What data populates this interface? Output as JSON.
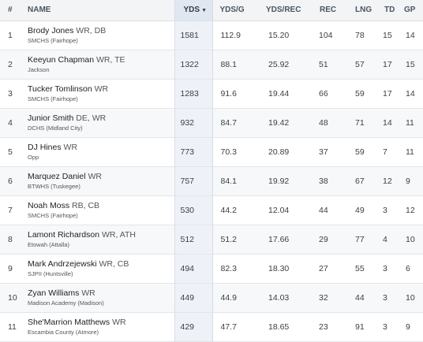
{
  "headers": {
    "rank": "#",
    "name": "NAME",
    "yds": "YDS",
    "sort_icon": "▼",
    "yds_g": "YDS/G",
    "yds_rec": "YDS/REC",
    "rec": "REC",
    "lng": "LNG",
    "td": "TD",
    "gp": "GP"
  },
  "rows": [
    {
      "rank": "1",
      "name": "Brody Jones",
      "pos": "WR, DB",
      "school": "SMCHS (Fairhope)",
      "yds": "1581",
      "yds_g": "112.9",
      "yds_rec": "15.20",
      "rec": "104",
      "lng": "78",
      "td": "15",
      "gp": "14"
    },
    {
      "rank": "2",
      "name": "Keeyun Chapman",
      "pos": "WR, TE",
      "school": "Jackson",
      "yds": "1322",
      "yds_g": "88.1",
      "yds_rec": "25.92",
      "rec": "51",
      "lng": "57",
      "td": "17",
      "gp": "15"
    },
    {
      "rank": "3",
      "name": "Tucker Tomlinson",
      "pos": "WR",
      "school": "SMCHS (Fairhope)",
      "yds": "1283",
      "yds_g": "91.6",
      "yds_rec": "19.44",
      "rec": "66",
      "lng": "59",
      "td": "17",
      "gp": "14"
    },
    {
      "rank": "4",
      "name": "Junior Smith",
      "pos": "DE, WR",
      "school": "DCHS (Midland City)",
      "yds": "932",
      "yds_g": "84.7",
      "yds_rec": "19.42",
      "rec": "48",
      "lng": "71",
      "td": "14",
      "gp": "11"
    },
    {
      "rank": "5",
      "name": "DJ Hines",
      "pos": "WR",
      "school": "Opp",
      "yds": "773",
      "yds_g": "70.3",
      "yds_rec": "20.89",
      "rec": "37",
      "lng": "59",
      "td": "7",
      "gp": "11"
    },
    {
      "rank": "6",
      "name": "Marquez Daniel",
      "pos": "WR",
      "school": "BTWHS (Tuskegee)",
      "yds": "757",
      "yds_g": "84.1",
      "yds_rec": "19.92",
      "rec": "38",
      "lng": "67",
      "td": "12",
      "gp": "9"
    },
    {
      "rank": "7",
      "name": "Noah Moss",
      "pos": "RB, CB",
      "school": "SMCHS (Fairhope)",
      "yds": "530",
      "yds_g": "44.2",
      "yds_rec": "12.04",
      "rec": "44",
      "lng": "49",
      "td": "3",
      "gp": "12"
    },
    {
      "rank": "8",
      "name": "Lamont Richardson",
      "pos": "WR, ATH",
      "school": "Etowah (Attalla)",
      "yds": "512",
      "yds_g": "51.2",
      "yds_rec": "17.66",
      "rec": "29",
      "lng": "77",
      "td": "4",
      "gp": "10"
    },
    {
      "rank": "9",
      "name": "Mark Andrzejewski",
      "pos": "WR, CB",
      "school": "SJPII (Huntsville)",
      "yds": "494",
      "yds_g": "82.3",
      "yds_rec": "18.30",
      "rec": "27",
      "lng": "55",
      "td": "3",
      "gp": "6"
    },
    {
      "rank": "10",
      "name": "Zyan Williams",
      "pos": "WR",
      "school": "Madison Academy (Madison)",
      "yds": "449",
      "yds_g": "44.9",
      "yds_rec": "14.03",
      "rec": "32",
      "lng": "44",
      "td": "3",
      "gp": "10"
    },
    {
      "rank": "11",
      "name": "She'Marrion Matthews",
      "pos": "WR",
      "school": "Escambia County (Atmore)",
      "yds": "429",
      "yds_g": "47.7",
      "yds_rec": "18.65",
      "rec": "23",
      "lng": "91",
      "td": "3",
      "gp": "9"
    }
  ]
}
